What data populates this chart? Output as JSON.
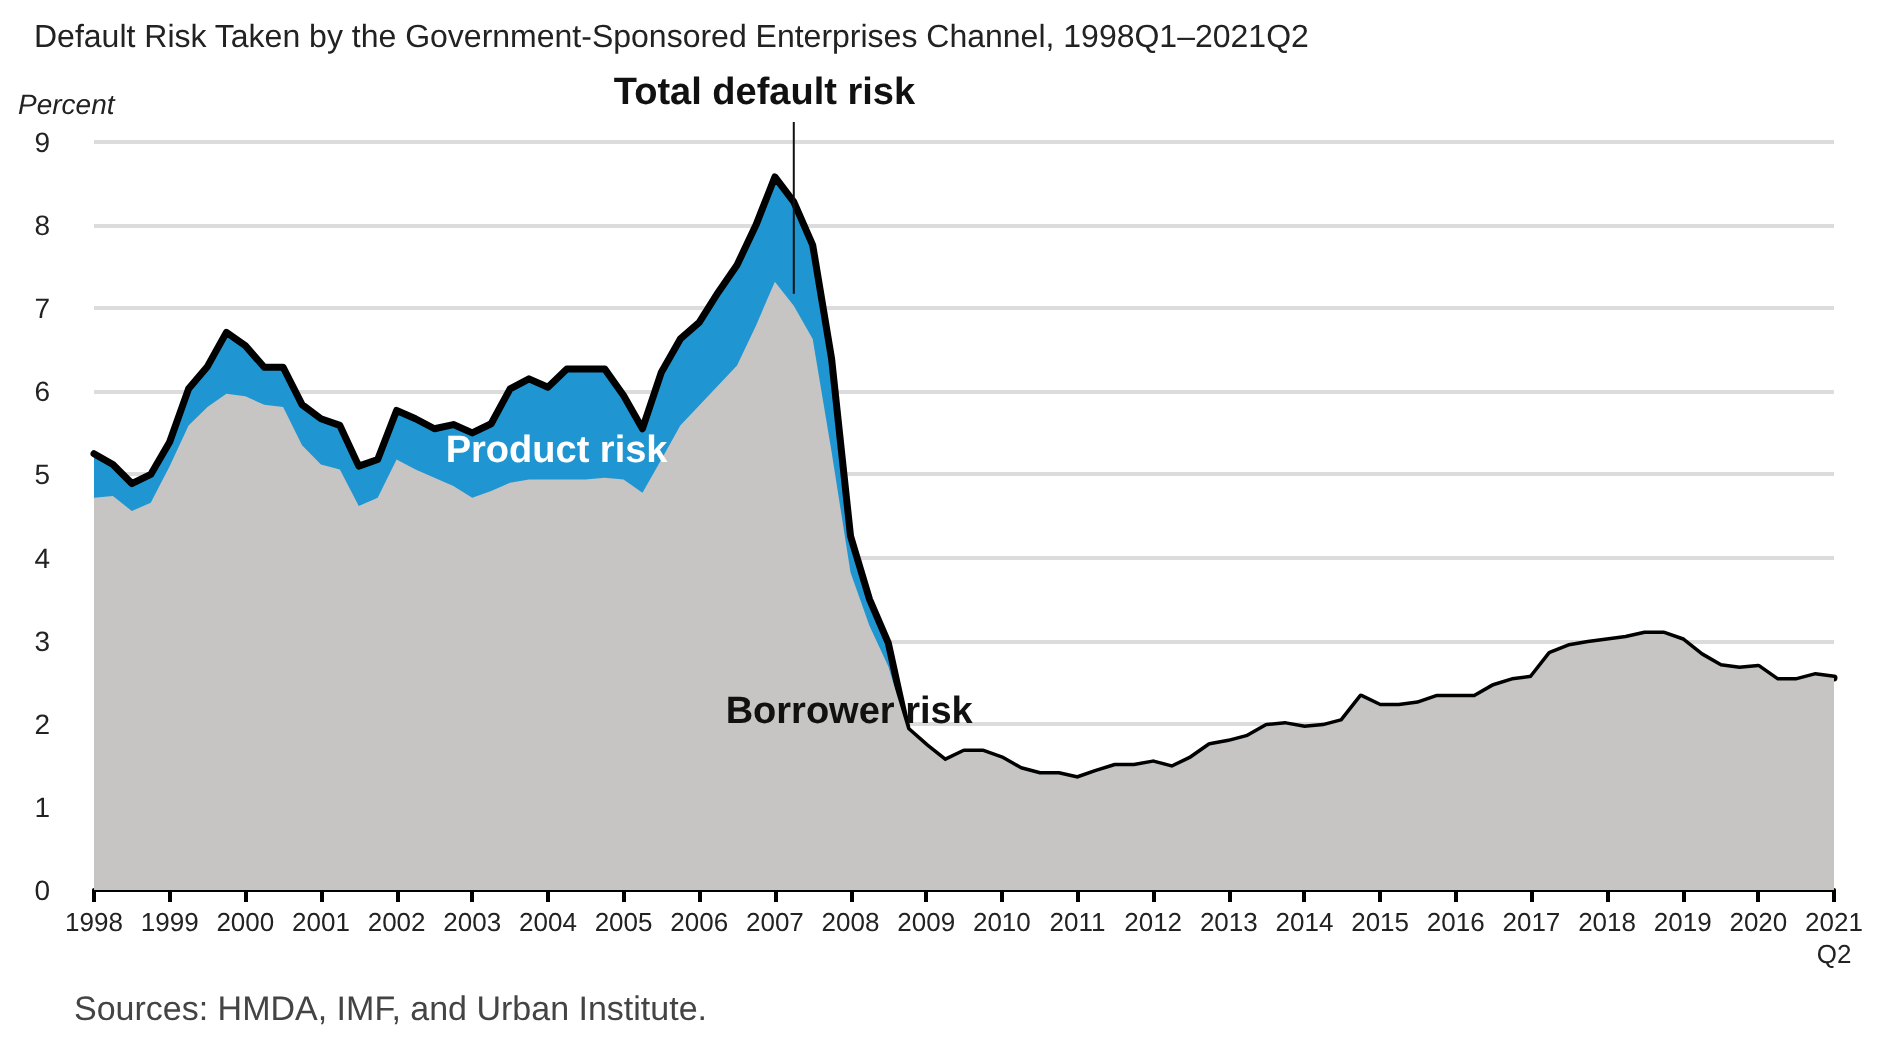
{
  "chart_data": {
    "type": "area",
    "title": "Default Risk Taken by the Government-Sponsored Enterprises Channel, 1998Q1–2021Q2",
    "ylabel": "Percent",
    "annotations": [
      {
        "text": "Total default risk",
        "x": 2007.25,
        "y": 8.28
      },
      "Sources: HMDA, IMF, and Urban Institute."
    ],
    "x": [
      1998,
      1998.25,
      1998.5,
      1998.75,
      1999,
      1999.25,
      1999.5,
      1999.75,
      2000,
      2000.25,
      2000.5,
      2000.75,
      2001,
      2001.25,
      2001.5,
      2001.75,
      2002,
      2002.25,
      2002.5,
      2002.75,
      2003,
      2003.25,
      2003.5,
      2003.75,
      2004,
      2004.25,
      2004.5,
      2004.75,
      2005,
      2005.25,
      2005.5,
      2005.75,
      2006,
      2006.25,
      2006.5,
      2006.75,
      2007,
      2007.25,
      2007.5,
      2007.75,
      2008,
      2008.25,
      2008.5,
      2008.75,
      2009,
      2009.25,
      2009.5,
      2009.75,
      2010,
      2010.25,
      2010.5,
      2010.75,
      2011,
      2011.25,
      2011.5,
      2011.75,
      2012,
      2012.25,
      2012.5,
      2012.75,
      2013,
      2013.25,
      2013.5,
      2013.75,
      2014,
      2014.25,
      2014.5,
      2014.75,
      2015,
      2015.25,
      2015.5,
      2015.75,
      2016,
      2016.25,
      2016.5,
      2016.75,
      2017,
      2017.25,
      2017.5,
      2017.75,
      2018,
      2018.25,
      2018.5,
      2018.75,
      2019,
      2019.25,
      2019.5,
      2019.75,
      2020,
      2020.25,
      2020.5,
      2020.75,
      2021
    ],
    "series": [
      {
        "name": "Borrower risk",
        "type": "area",
        "color": "#c6c5c4",
        "values": [
          4.72,
          4.74,
          4.56,
          4.66,
          5.1,
          5.59,
          5.81,
          5.97,
          5.94,
          5.84,
          5.81,
          5.35,
          5.12,
          5.06,
          4.62,
          4.72,
          5.18,
          5.06,
          4.96,
          4.86,
          4.72,
          4.8,
          4.9,
          4.94,
          4.94,
          4.94,
          4.94,
          4.96,
          4.94,
          4.78,
          5.18,
          5.59,
          5.83,
          6.07,
          6.31,
          6.79,
          7.32,
          7.03,
          6.63,
          5.27,
          3.82,
          3.18,
          2.69,
          1.93,
          1.73,
          1.55,
          1.66,
          1.66,
          1.58,
          1.45,
          1.39,
          1.39,
          1.34,
          1.42,
          1.49,
          1.49,
          1.53,
          1.47,
          1.58,
          1.74,
          1.78,
          1.84,
          1.97,
          1.99,
          1.95,
          1.97,
          2.03,
          2.32,
          2.21,
          2.21,
          2.24,
          2.32,
          2.32,
          2.32,
          2.45,
          2.52,
          2.55,
          2.84,
          2.93,
          2.97,
          3.0,
          3.03,
          3.08,
          3.08,
          3.0,
          2.82,
          2.69,
          2.66,
          2.68,
          2.52,
          2.52,
          2.58,
          2.55
        ]
      },
      {
        "name": "Product risk",
        "type": "area",
        "color": "#1f96d1",
        "values": [
          0.53,
          0.38,
          0.33,
          0.34,
          0.29,
          0.44,
          0.49,
          0.74,
          0.61,
          0.45,
          0.48,
          0.49,
          0.55,
          0.53,
          0.48,
          0.46,
          0.59,
          0.61,
          0.59,
          0.74,
          0.78,
          0.81,
          1.13,
          1.21,
          1.11,
          1.33,
          1.33,
          1.31,
          1.01,
          0.77,
          1.05,
          1.04,
          1.0,
          1.12,
          1.21,
          1.21,
          1.26,
          1.25,
          1.13,
          1.12,
          0.44,
          0.32,
          0.28,
          0,
          0,
          0,
          0,
          0,
          0,
          0,
          0,
          0,
          0,
          0,
          0,
          0,
          0,
          0,
          0,
          0,
          0,
          0,
          0,
          0,
          0,
          0,
          0,
          0,
          0,
          0,
          0,
          0,
          0,
          0,
          0,
          0,
          0,
          0,
          0,
          0,
          0,
          0,
          0,
          0,
          0,
          0,
          0,
          0,
          0,
          0,
          0,
          0,
          0
        ]
      }
    ],
    "stacked": true,
    "xlim": [
      1998,
      2021
    ],
    "xticks": [
      1998,
      1999,
      2000,
      2001,
      2002,
      2003,
      2004,
      2005,
      2006,
      2007,
      2008,
      2009,
      2010,
      2011,
      2012,
      2013,
      2014,
      2015,
      2016,
      2017,
      2018,
      2019,
      2020,
      {
        "value": 2021,
        "label": "2021\nQ2"
      }
    ],
    "ylim": [
      0,
      9
    ],
    "yticks": [
      0,
      1,
      2,
      3,
      4,
      5,
      6,
      7,
      8,
      9
    ],
    "grid": "y",
    "legend": false,
    "marker": "none"
  }
}
